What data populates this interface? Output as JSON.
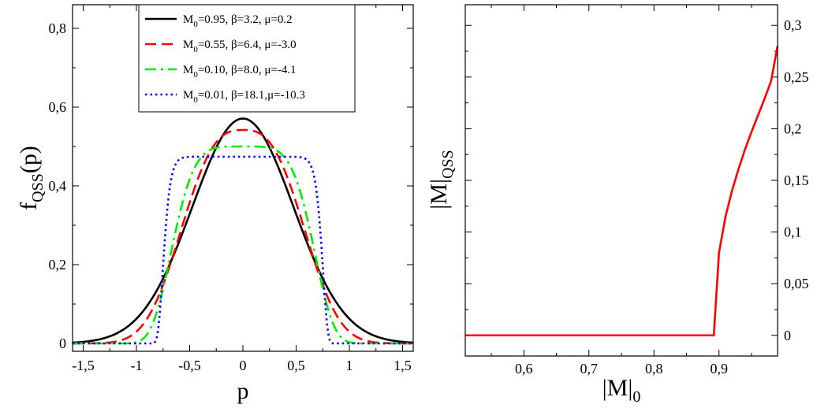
{
  "chart_data": [
    {
      "type": "line",
      "xlabel": "p",
      "ylabel_main": "f",
      "ylabel_sub": "QSS",
      "ylabel_tail": "(p)",
      "xlim": [
        -1.6,
        1.6
      ],
      "ylim": [
        -0.02,
        0.86
      ],
      "xticks": [
        -1.5,
        -1,
        -0.5,
        0,
        0.5,
        1,
        1.5
      ],
      "xtick_labels": [
        "-1,5",
        "-1",
        "-0,5",
        "0",
        "0,5",
        "1",
        "1,5"
      ],
      "yticks": [
        0,
        0.2,
        0.4,
        0.6,
        0.8
      ],
      "ytick_labels": [
        "0",
        "0,2",
        "0,4",
        "0,6",
        "0,8"
      ],
      "legend_position": "top-center",
      "series": [
        {
          "name": "M0=0.95, β=3.2, μ=0.2",
          "label_pre": "M",
          "label_sub": "0",
          "label_post": "=0.95, β=3.2,  μ=0.2",
          "color": "#000000",
          "dash": "solid",
          "plateau": 0.571,
          "width": 0.56,
          "shape": 1.0
        },
        {
          "name": "M0=0.55, β=6.4, μ=-3.0",
          "label_pre": "M",
          "label_sub": "0",
          "label_post": "=0.55, β=6.4,  μ=-3.0",
          "color": "#ff0000",
          "dash": "dashed",
          "plateau": 0.542,
          "width": 0.6,
          "shape": 1.4
        },
        {
          "name": "M0=0.10, β=8.0, μ=-4.1",
          "label_pre": "M",
          "label_sub": "0",
          "label_post": "=0.10, β=8.0,  μ=-4.1",
          "color": "#00ee00",
          "dash": "dashdot",
          "plateau": 0.5,
          "width": 0.66,
          "shape": 2.4
        },
        {
          "name": "M0=0.01, β=18.1, μ=-10.3",
          "label_pre": "M",
          "label_sub": "0",
          "label_post": "=0.01, β=18.1,μ=-10.3",
          "color": "#0000ff",
          "dash": "dotted",
          "plateau": 0.474,
          "width": 0.74,
          "shape": 9.0
        }
      ]
    },
    {
      "type": "line",
      "xlabel_main": "|M|",
      "xlabel_sub": "0",
      "ylabel_main": "|M|",
      "ylabel_sub": "QSS",
      "xlim": [
        0.51,
        0.99
      ],
      "ylim": [
        -0.02,
        0.32
      ],
      "xticks": [
        0.6,
        0.7,
        0.8,
        0.9
      ],
      "xtick_labels": [
        "0,6",
        "0,7",
        "0,8",
        "0,9"
      ],
      "yticks": [
        0,
        0.05,
        0.1,
        0.15,
        0.2,
        0.25,
        0.3
      ],
      "ytick_labels": [
        "0",
        "0,05",
        "0,1",
        "0,15",
        "0,2",
        "0,25",
        "0,3"
      ],
      "series": [
        {
          "name": "|M|QSS",
          "color": "#ff0000",
          "x": [
            0.51,
            0.6,
            0.7,
            0.8,
            0.89,
            0.892,
            0.9,
            0.91,
            0.92,
            0.93,
            0.94,
            0.95,
            0.96,
            0.97,
            0.98,
            0.99
          ],
          "y": [
            0,
            0,
            0,
            0,
            0,
            0,
            0.08,
            0.115,
            0.14,
            0.161,
            0.18,
            0.197,
            0.213,
            0.229,
            0.246,
            0.28
          ]
        }
      ]
    }
  ]
}
